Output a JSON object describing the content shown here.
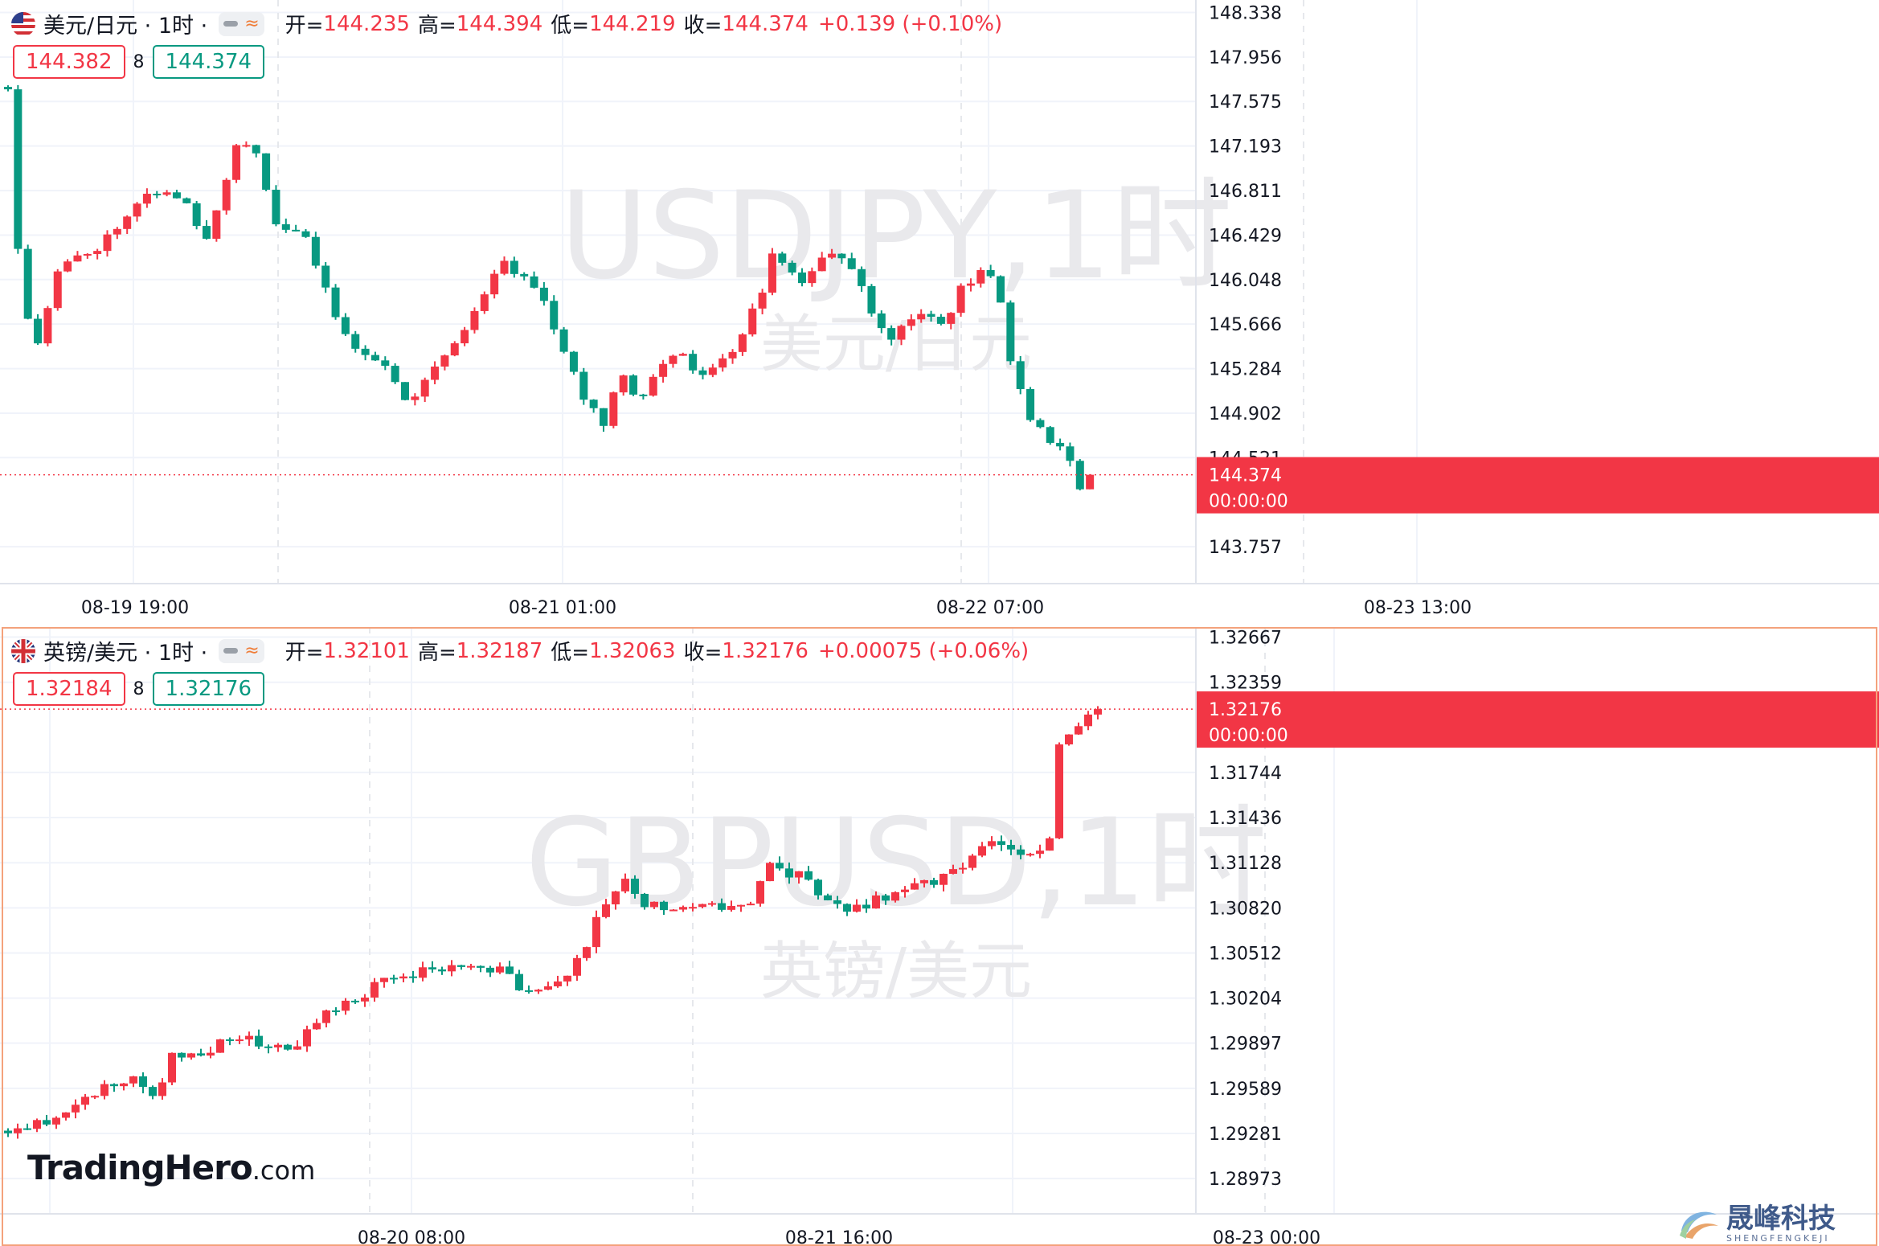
{
  "panels": [
    {
      "symbol": "美元/日元 · 1时 ·",
      "watermark": "USDJPY,1时",
      "watermark_sub": "美元/日元",
      "flag": "us-flag",
      "ohlc": {
        "open_label": "开=",
        "open": "144.235",
        "high_label": "高=",
        "high": "144.394",
        "low_label": "低=",
        "low": "144.219",
        "close_label": "收=",
        "close": "144.374",
        "change": "+0.139 (+0.10%)"
      },
      "bid": "144.382",
      "spread": "8",
      "ask": "144.374",
      "last_price": "144.374",
      "countdown": "00:00:00",
      "chart_data": {
        "type": "candlestick",
        "y_ticks": [
          "148.338",
          "147.956",
          "147.575",
          "147.193",
          "146.811",
          "146.429",
          "146.048",
          "145.666",
          "145.284",
          "144.902",
          "144.521",
          "143.757"
        ],
        "ylim": [
          143.62,
          148.39
        ],
        "x_ticks": [
          "08-19 19:00",
          "08-21 01:00",
          "08-22 07:00",
          "08-23 13:00"
        ],
        "last_price": 144.374,
        "up_color": "#f23645",
        "down_color": "#089981"
      }
    },
    {
      "symbol": "英镑/美元 · 1时 ·",
      "watermark": "GBPUSD,1时",
      "watermark_sub": "英镑/美元",
      "flag": "uk-flag",
      "ohlc": {
        "open_label": "开=",
        "open": "1.32101",
        "high_label": "高=",
        "high": "1.32187",
        "low_label": "低=",
        "low": "1.32063",
        "close_label": "收=",
        "close": "1.32176",
        "change": "+0.00075 (+0.06%)"
      },
      "bid": "1.32184",
      "spread": "8",
      "ask": "1.32176",
      "last_price": "1.32176",
      "countdown": "00:00:00",
      "chart_data": {
        "type": "candlestick",
        "y_ticks": [
          "1.32667",
          "1.32359",
          "1.31744",
          "1.31436",
          "1.31128",
          "1.30820",
          "1.30512",
          "1.30204",
          "1.29897",
          "1.29589",
          "1.29281",
          "1.28973"
        ],
        "ylim": [
          1.28897,
          1.32692
        ],
        "x_ticks": [
          "08-20 08:00",
          "08-21 16:00",
          "08-23 00:00"
        ],
        "last_price": 1.32176,
        "up_color": "#f23645",
        "down_color": "#089981"
      }
    }
  ],
  "logo_left": {
    "brand": "TradingHero",
    "domain": ".com"
  },
  "logo_right": {
    "brand": "晟峰科技",
    "sub": "SHENGFENGKEJI"
  }
}
